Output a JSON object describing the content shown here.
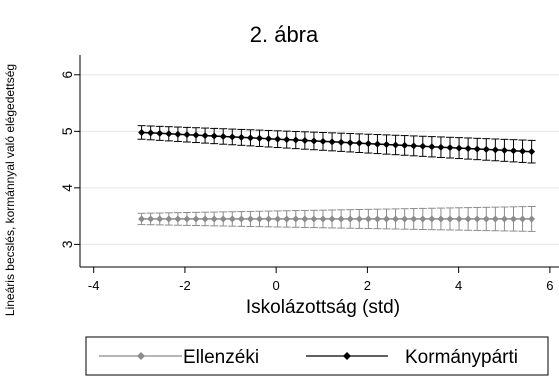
{
  "chart_data": {
    "type": "line",
    "title": "2. ábra",
    "xlabel": "Iskolázottság (std)",
    "ylabel": "Lineáris becslés, kormánnyal való elégedettség",
    "xlim": [
      -4.3,
      6.2
    ],
    "ylim": [
      2.6,
      6.35
    ],
    "xticks": [
      -4,
      -2,
      0,
      2,
      4,
      6
    ],
    "yticks": [
      3,
      4,
      5,
      6
    ],
    "grid": "horizontal",
    "legend_position": "bottom",
    "error_bars": true,
    "series": [
      {
        "name": "Ellenzéki",
        "color": "#8c8c8c",
        "marker": "diamond",
        "x_start": -2.95,
        "x_end": 5.6,
        "n_points": 44,
        "y_start": 3.45,
        "y_end": 3.45,
        "ci_half_start": 0.1,
        "ci_half_end": 0.22
      },
      {
        "name": "Kormánypárti",
        "color": "#000000",
        "marker": "diamond",
        "x_start": -2.95,
        "x_end": 5.6,
        "n_points": 44,
        "y_start": 4.98,
        "y_end": 4.64,
        "ci_half_start": 0.12,
        "ci_half_end": 0.2
      }
    ]
  }
}
